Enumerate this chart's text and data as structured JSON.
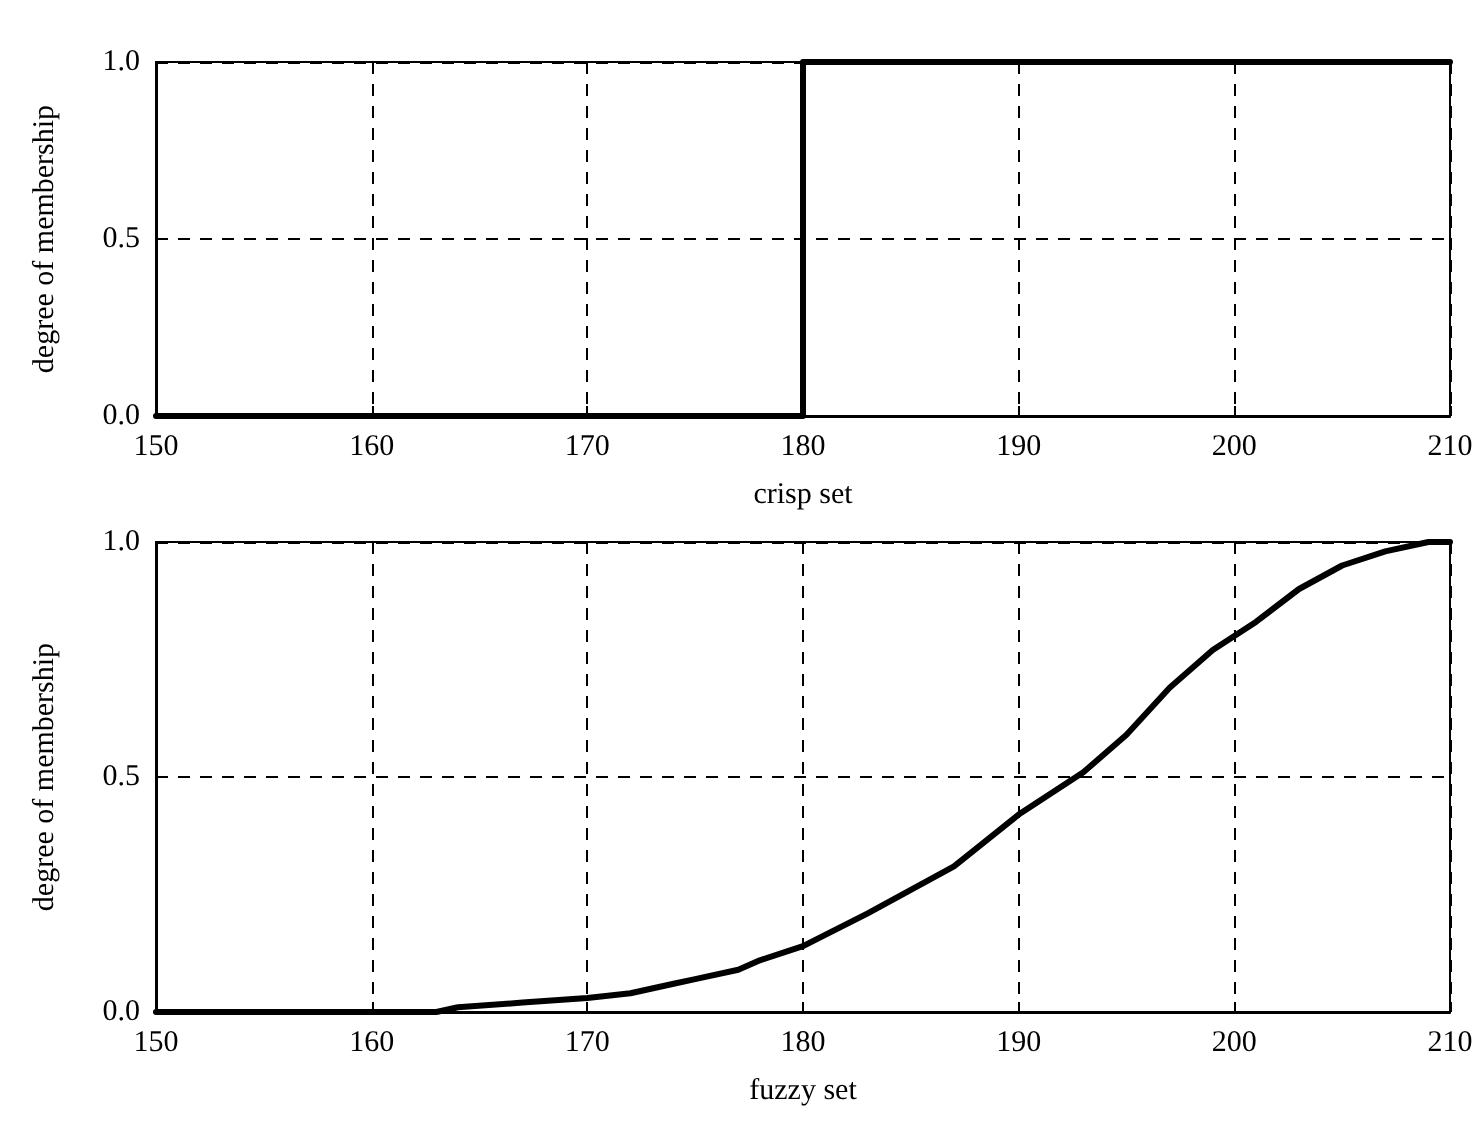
{
  "chart_data": [
    {
      "type": "line",
      "xlabel": "crisp set",
      "ylabel": "degree of membership",
      "x": [
        150,
        180,
        180,
        210
      ],
      "series": [
        {
          "color": "#000000",
          "values": [
            0,
            0,
            1,
            1
          ]
        }
      ],
      "xlim": [
        150,
        210
      ],
      "xticks": [
        150,
        160,
        170,
        180,
        190,
        200,
        210
      ],
      "ylim": [
        0,
        1
      ],
      "yticks": [
        {
          "value": 0,
          "label": "0.0"
        },
        {
          "value": 0.5,
          "label": "0.5"
        },
        {
          "value": 1,
          "label": "1.0"
        }
      ],
      "grid": true,
      "legend": false,
      "marker": "none",
      "line_style": "solid"
    },
    {
      "type": "line",
      "xlabel": "fuzzy set",
      "ylabel": "degree of membership",
      "x": [
        150,
        163,
        164,
        167,
        170,
        172,
        174,
        175,
        177,
        178,
        180,
        183,
        185,
        187,
        190,
        193,
        195,
        197,
        199,
        201,
        203,
        205,
        207,
        209,
        210
      ],
      "series": [
        {
          "color": "#000000",
          "values": [
            0,
            0,
            0.01,
            0.02,
            0.03,
            0.04,
            0.06,
            0.07,
            0.09,
            0.11,
            0.14,
            0.21,
            0.26,
            0.31,
            0.42,
            0.51,
            0.59,
            0.69,
            0.77,
            0.83,
            0.9,
            0.95,
            0.98,
            1,
            1
          ]
        }
      ],
      "xlim": [
        150,
        210
      ],
      "xticks": [
        150,
        160,
        170,
        180,
        190,
        200,
        210
      ],
      "ylim": [
        0,
        1
      ],
      "yticks": [
        {
          "value": 0,
          "label": "0.0"
        },
        {
          "value": 0.5,
          "label": "0.5"
        },
        {
          "value": 1,
          "label": "1.0"
        }
      ],
      "grid": true,
      "legend": false,
      "marker": "none",
      "line_style": "solid"
    }
  ]
}
